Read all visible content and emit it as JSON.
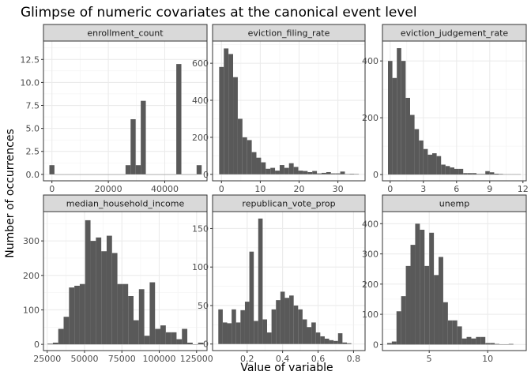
{
  "chart_data": {
    "type": "bar",
    "title": "Glimpse of numeric covariates at the canonical event level",
    "xlabel": "Value of variable",
    "ylabel": "Number of occurrences",
    "grid": true,
    "panels": [
      {
        "name": "enrollment_count",
        "xlim": [
          -3000,
          55000
        ],
        "ylim": [
          -0.7,
          14.5
        ],
        "xticks": [
          0,
          20000,
          40000
        ],
        "xtick_labels": [
          "0",
          "20000",
          "40000"
        ],
        "yticks": [
          0,
          2.5,
          5,
          7.5,
          10,
          12.5
        ],
        "ytick_labels": [
          "0.0",
          "2.5",
          "5.0",
          "7.5",
          "10.0",
          "12.5"
        ],
        "bins": [
          [
            0,
            1
          ],
          [
            1800,
            0
          ],
          [
            3600,
            0
          ],
          [
            5400,
            0
          ],
          [
            7200,
            0
          ],
          [
            9000,
            0
          ],
          [
            10800,
            0
          ],
          [
            12600,
            0
          ],
          [
            14400,
            0
          ],
          [
            16200,
            0
          ],
          [
            18000,
            0
          ],
          [
            19800,
            0
          ],
          [
            21600,
            0
          ],
          [
            23400,
            0
          ],
          [
            25200,
            0
          ],
          [
            27000,
            1
          ],
          [
            28800,
            6
          ],
          [
            30600,
            1
          ],
          [
            32400,
            8
          ],
          [
            34200,
            0
          ],
          [
            36000,
            0
          ],
          [
            37800,
            0
          ],
          [
            39600,
            0
          ],
          [
            41400,
            0
          ],
          [
            43200,
            0
          ],
          [
            45000,
            12
          ],
          [
            46800,
            0
          ],
          [
            48600,
            0
          ],
          [
            50400,
            0
          ],
          [
            52200,
            1
          ]
        ]
      },
      {
        "name": "eviction_filing_rate",
        "xlim": [
          -2.3,
          37
        ],
        "ylim": [
          -35,
          720
        ],
        "xticks": [
          0,
          10,
          20,
          30
        ],
        "xtick_labels": [
          "0",
          "10",
          "20",
          "30"
        ],
        "yticks": [
          0,
          200,
          400,
          600
        ],
        "ytick_labels": [
          "0",
          "200",
          "400",
          "600"
        ],
        "bins": [
          [
            0,
            580
          ],
          [
            1.2,
            680
          ],
          [
            2.4,
            650
          ],
          [
            3.6,
            525
          ],
          [
            4.8,
            300
          ],
          [
            6,
            200
          ],
          [
            7.2,
            185
          ],
          [
            8.4,
            120
          ],
          [
            9.6,
            90
          ],
          [
            10.8,
            65
          ],
          [
            12,
            30
          ],
          [
            13.2,
            35
          ],
          [
            14.4,
            20
          ],
          [
            15.6,
            50
          ],
          [
            16.8,
            35
          ],
          [
            18,
            60
          ],
          [
            19.2,
            40
          ],
          [
            20.4,
            20
          ],
          [
            21.6,
            18
          ],
          [
            22.8,
            12
          ],
          [
            24,
            18
          ],
          [
            25.2,
            5
          ],
          [
            26.4,
            8
          ],
          [
            27.6,
            12
          ],
          [
            28.8,
            5
          ],
          [
            30,
            5
          ],
          [
            31.2,
            15
          ],
          [
            32.4,
            2
          ],
          [
            33.6,
            3
          ],
          [
            34.8,
            2
          ]
        ]
      },
      {
        "name": "eviction_judgement_rate",
        "xlim": [
          -0.7,
          12.3
        ],
        "ylim": [
          -22,
          470
        ],
        "xticks": [
          0,
          3,
          6,
          9,
          12
        ],
        "xtick_labels": [
          "0",
          "3",
          "6",
          "9",
          "12"
        ],
        "yticks": [
          0,
          200,
          400
        ],
        "ytick_labels": [
          "0",
          "200",
          "400"
        ],
        "bins": [
          [
            0,
            400
          ],
          [
            0.4,
            340
          ],
          [
            0.8,
            445
          ],
          [
            1.2,
            400
          ],
          [
            1.6,
            270
          ],
          [
            2,
            210
          ],
          [
            2.4,
            160
          ],
          [
            2.8,
            120
          ],
          [
            3.2,
            90
          ],
          [
            3.6,
            70
          ],
          [
            4,
            75
          ],
          [
            4.4,
            65
          ],
          [
            4.8,
            35
          ],
          [
            5.2,
            30
          ],
          [
            5.6,
            25
          ],
          [
            6,
            20
          ],
          [
            6.4,
            20
          ],
          [
            6.8,
            5
          ],
          [
            7.2,
            5
          ],
          [
            7.6,
            5
          ],
          [
            8,
            2
          ],
          [
            8.4,
            2
          ],
          [
            8.8,
            12
          ],
          [
            9.2,
            8
          ],
          [
            9.6,
            3
          ],
          [
            10,
            2
          ],
          [
            10.4,
            1
          ],
          [
            10.8,
            1
          ],
          [
            11.2,
            1
          ],
          [
            11.6,
            1
          ]
        ]
      },
      {
        "name": "median_household_income",
        "xlim": [
          22500,
          132000
        ],
        "ylim": [
          -18,
          385
        ],
        "xticks": [
          25000,
          50000,
          75000,
          100000,
          125000
        ],
        "xtick_labels": [
          "25000",
          "50000",
          "75000",
          "100000",
          "125000"
        ],
        "yticks": [
          0,
          100,
          200,
          300
        ],
        "ytick_labels": [
          "0",
          "100",
          "200",
          "300"
        ],
        "bins": [
          [
            27000,
            2
          ],
          [
            30600,
            5
          ],
          [
            34200,
            45
          ],
          [
            37800,
            80
          ],
          [
            41400,
            165
          ],
          [
            45000,
            170
          ],
          [
            48600,
            175
          ],
          [
            52200,
            360
          ],
          [
            55800,
            300
          ],
          [
            59400,
            310
          ],
          [
            63000,
            270
          ],
          [
            66600,
            315
          ],
          [
            70200,
            265
          ],
          [
            73800,
            175
          ],
          [
            77400,
            175
          ],
          [
            81000,
            140
          ],
          [
            84600,
            70
          ],
          [
            88200,
            160
          ],
          [
            91800,
            25
          ],
          [
            95400,
            180
          ],
          [
            99000,
            45
          ],
          [
            102600,
            55
          ],
          [
            106200,
            35
          ],
          [
            109800,
            35
          ],
          [
            113400,
            15
          ],
          [
            117000,
            45
          ],
          [
            120600,
            5
          ],
          [
            124200,
            0
          ],
          [
            127800,
            5
          ]
        ]
      },
      {
        "name": "republican_vote_prop",
        "xlim": [
          0.005,
          0.865
        ],
        "ylim": [
          -8.5,
          172
        ],
        "xticks": [
          0.2,
          0.4,
          0.6,
          0.8
        ],
        "xtick_labels": [
          "0.2",
          "0.4",
          "0.6",
          "0.8"
        ],
        "yticks": [
          0,
          50,
          100,
          150
        ],
        "ytick_labels": [
          "0",
          "50",
          "100",
          "150"
        ],
        "bins": [
          [
            0.05,
            45
          ],
          [
            0.075,
            28
          ],
          [
            0.1,
            27
          ],
          [
            0.125,
            45
          ],
          [
            0.15,
            28
          ],
          [
            0.175,
            44
          ],
          [
            0.2,
            55
          ],
          [
            0.225,
            120
          ],
          [
            0.25,
            30
          ],
          [
            0.275,
            163
          ],
          [
            0.3,
            32
          ],
          [
            0.325,
            15
          ],
          [
            0.35,
            45
          ],
          [
            0.375,
            57
          ],
          [
            0.4,
            68
          ],
          [
            0.425,
            60
          ],
          [
            0.45,
            63
          ],
          [
            0.475,
            50
          ],
          [
            0.5,
            45
          ],
          [
            0.525,
            32
          ],
          [
            0.55,
            22
          ],
          [
            0.575,
            28
          ],
          [
            0.6,
            15
          ],
          [
            0.625,
            10
          ],
          [
            0.65,
            7
          ],
          [
            0.675,
            5
          ],
          [
            0.7,
            4
          ],
          [
            0.725,
            14
          ],
          [
            0.75,
            2
          ],
          [
            0.775,
            1
          ]
        ]
      },
      {
        "name": "unemp",
        "xlim": [
          1,
          13.3
        ],
        "ylim": [
          -20,
          440
        ],
        "xticks": [
          5,
          10
        ],
        "xtick_labels": [
          "5",
          "10"
        ],
        "yticks": [
          0,
          100,
          200,
          300,
          400
        ],
        "ytick_labels": [
          "0",
          "100",
          "200",
          "300",
          "400"
        ],
        "bins": [
          [
            1.6,
            5
          ],
          [
            2,
            10
          ],
          [
            2.4,
            110
          ],
          [
            2.8,
            160
          ],
          [
            3.2,
            260
          ],
          [
            3.6,
            330
          ],
          [
            4,
            400
          ],
          [
            4.4,
            380
          ],
          [
            4.8,
            260
          ],
          [
            5.2,
            370
          ],
          [
            5.6,
            230
          ],
          [
            6,
            290
          ],
          [
            6.4,
            140
          ],
          [
            6.8,
            80
          ],
          [
            7.2,
            80
          ],
          [
            7.6,
            60
          ],
          [
            8,
            20
          ],
          [
            8.4,
            25
          ],
          [
            8.8,
            20
          ],
          [
            9.2,
            25
          ],
          [
            9.6,
            25
          ],
          [
            10,
            5
          ],
          [
            10.4,
            5
          ],
          [
            10.8,
            2
          ],
          [
            11.2,
            0
          ],
          [
            11.6,
            0
          ],
          [
            12,
            2
          ]
        ]
      }
    ]
  }
}
